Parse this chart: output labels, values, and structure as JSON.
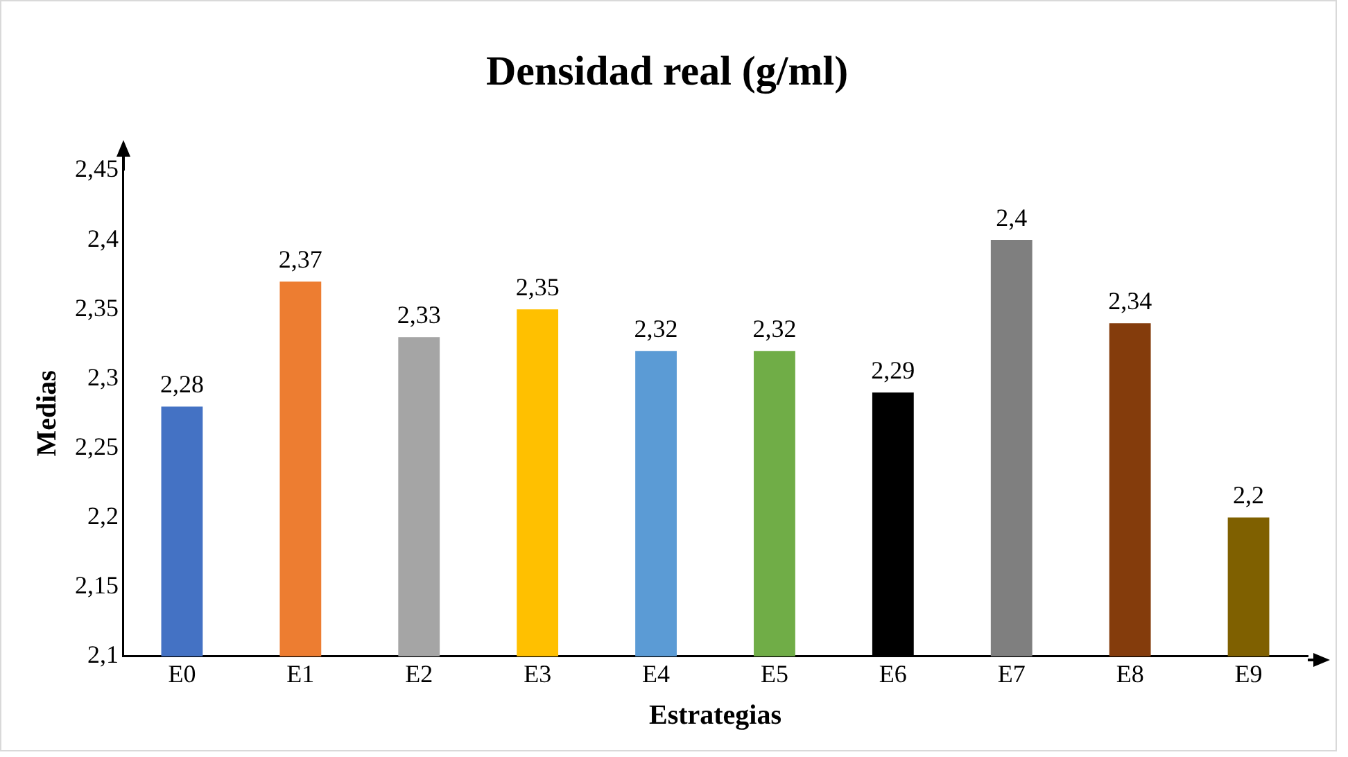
{
  "chart_data": {
    "type": "bar",
    "title": "Densidad real (g/ml)",
    "xlabel": "Estrategias",
    "ylabel": "Medias",
    "categories": [
      "E0",
      "E1",
      "E2",
      "E3",
      "E4",
      "E5",
      "E6",
      "E7",
      "E8",
      "E9"
    ],
    "values": [
      2.28,
      2.37,
      2.33,
      2.35,
      2.32,
      2.32,
      2.29,
      2.4,
      2.34,
      2.2
    ],
    "colors": [
      "#4472c4",
      "#ed7d31",
      "#a5a5a5",
      "#ffc000",
      "#5b9bd5",
      "#70ad47",
      "#000000",
      "#7f7f7f",
      "#843c0c",
      "#7f6000"
    ],
    "value_labels": [
      "2,28",
      "2,37",
      "2,33",
      "2,35",
      "2,32",
      "2,32",
      "2,29",
      "2,4",
      "2,34",
      "2,2"
    ],
    "ylim": [
      2.1,
      2.45
    ],
    "yticks": [
      {
        "value": 2.1,
        "label": "2,1"
      },
      {
        "value": 2.15,
        "label": "2,15"
      },
      {
        "value": 2.2,
        "label": "2,2"
      },
      {
        "value": 2.25,
        "label": "2,25"
      },
      {
        "value": 2.3,
        "label": "2,3"
      },
      {
        "value": 2.35,
        "label": "2,35"
      },
      {
        "value": 2.4,
        "label": "2,4"
      },
      {
        "value": 2.45,
        "label": "2,45"
      }
    ],
    "grid": false,
    "legend": false
  }
}
